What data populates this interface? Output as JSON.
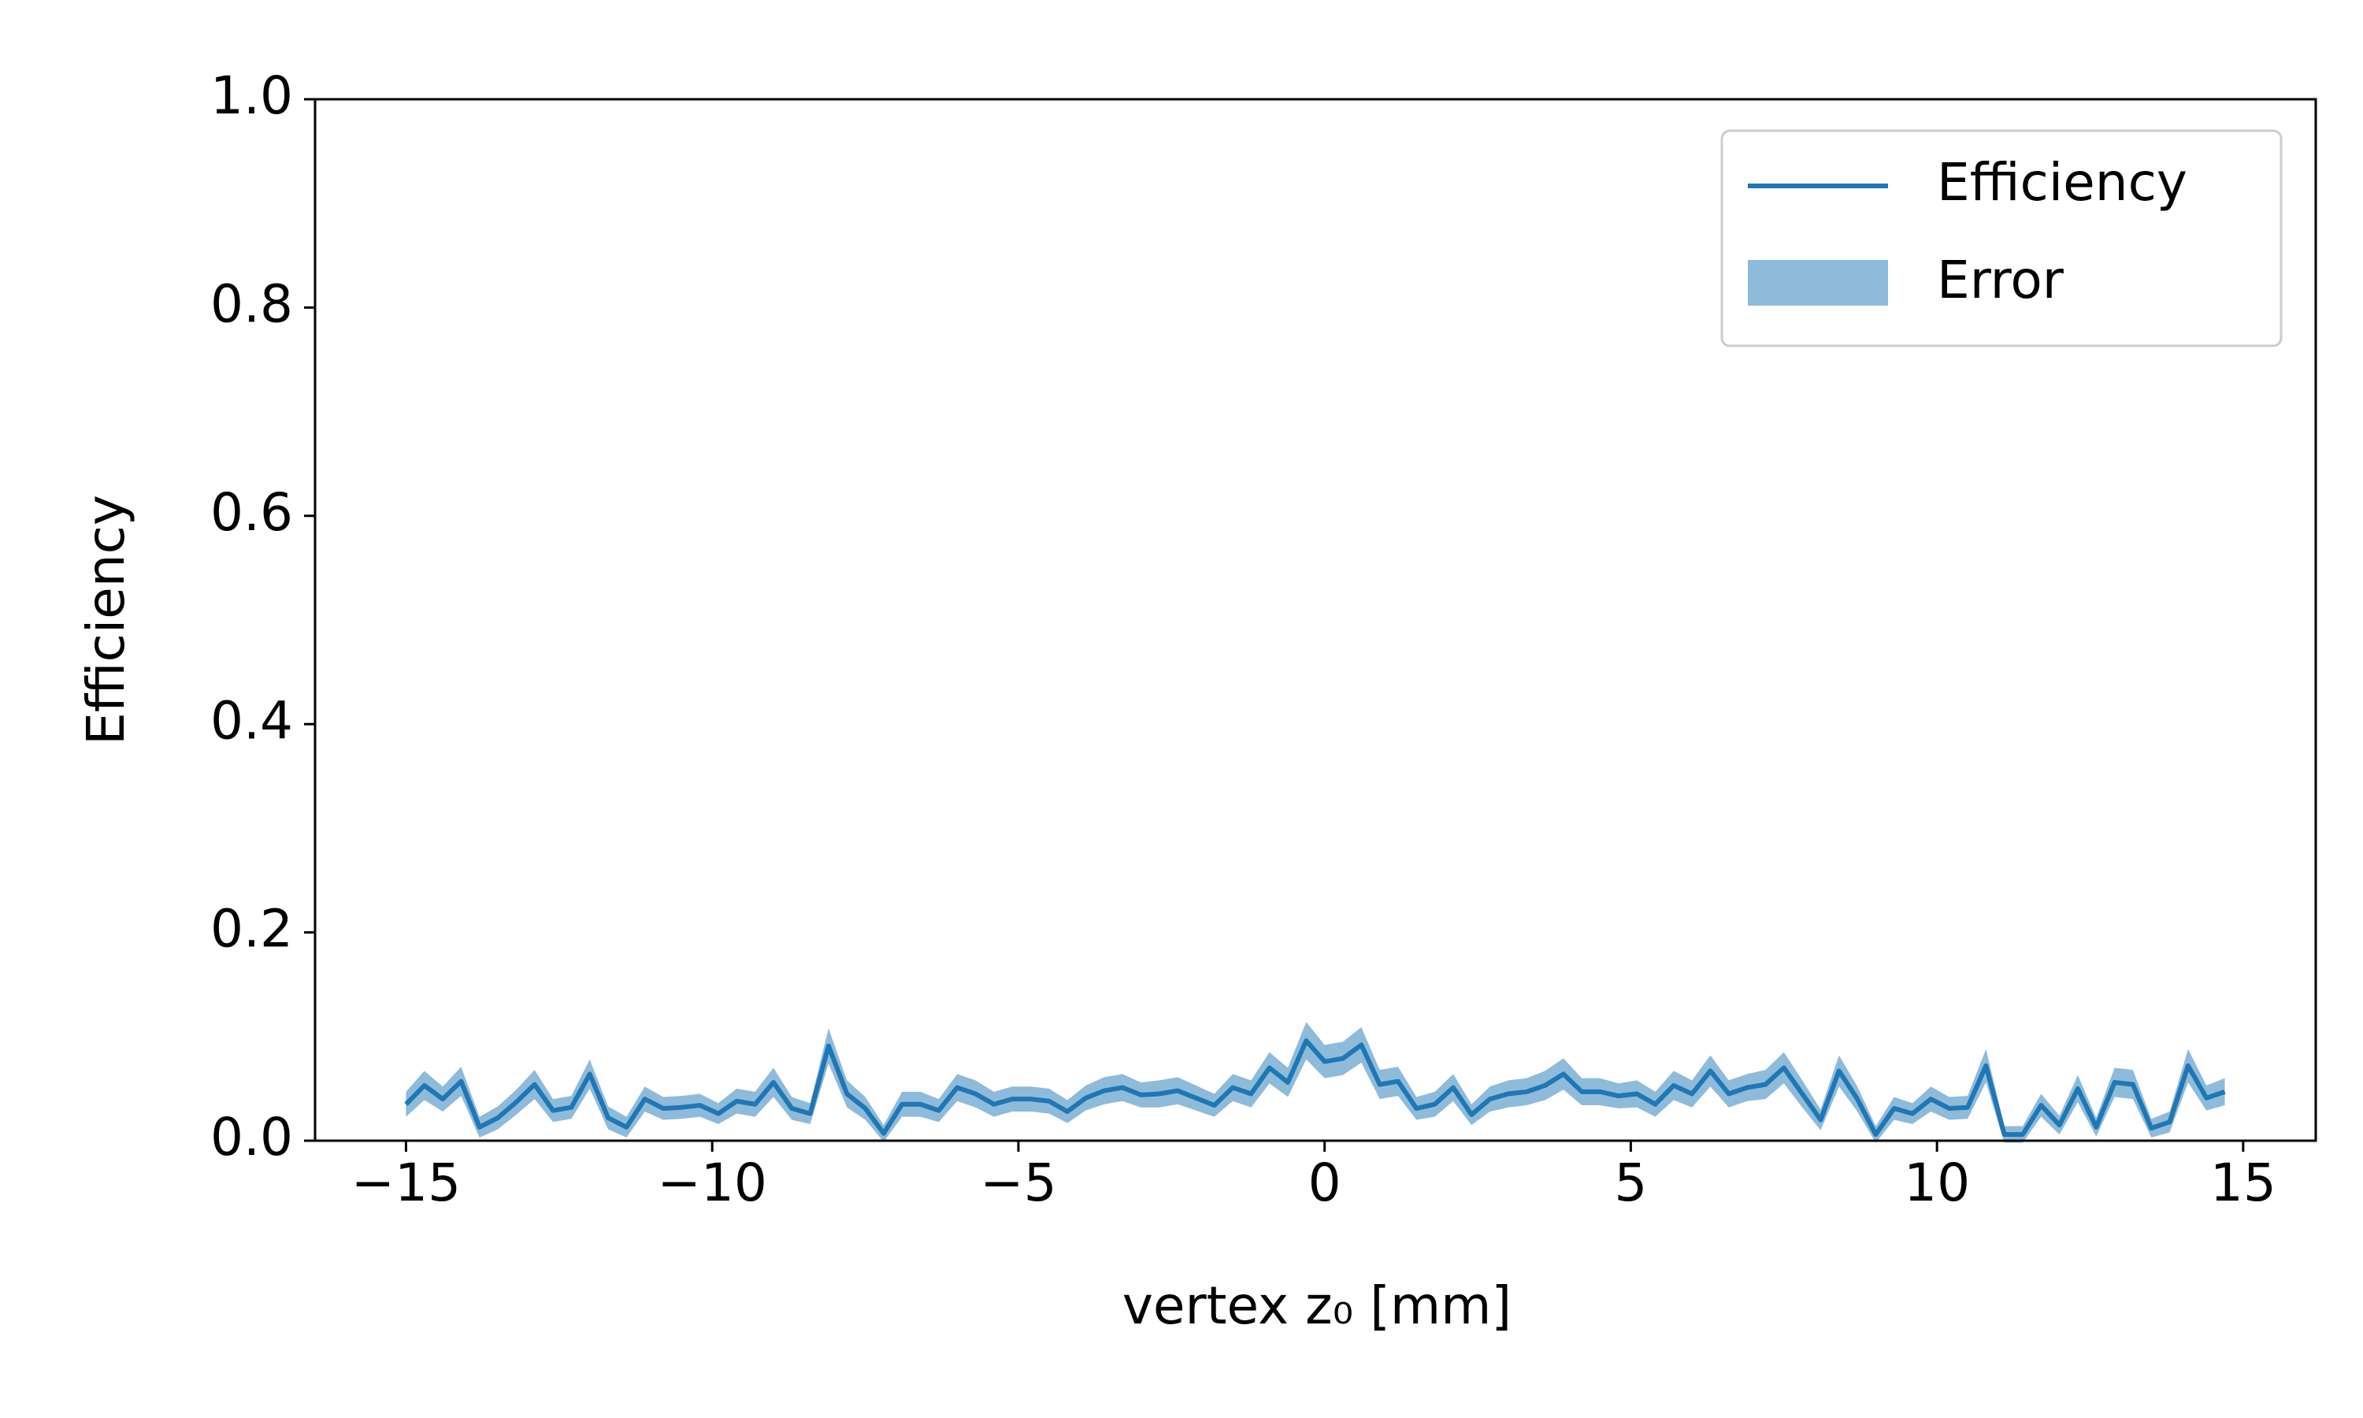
{
  "chart_data": {
    "type": "line",
    "xlabel": "vertex z₀ [mm]",
    "ylabel": "Efficiency",
    "x": [
      -15,
      -14.7,
      -14.4,
      -14.1,
      -13.8,
      -13.5,
      -13.2,
      -12.9,
      -12.6,
      -12.3,
      -12,
      -11.7,
      -11.4,
      -11.1,
      -10.8,
      -10.5,
      -10.2,
      -9.9,
      -9.6,
      -9.3,
      -9,
      -8.7,
      -8.4,
      -8.1,
      -7.8,
      -7.5,
      -7.2,
      -6.9,
      -6.6,
      -6.3,
      -6,
      -5.7,
      -5.4,
      -5.1,
      -4.8,
      -4.5,
      -4.2,
      -3.9,
      -3.6,
      -3.3,
      -3,
      -2.7,
      -2.4,
      -2.1,
      -1.8,
      -1.5,
      -1.2,
      -0.9,
      -0.6,
      -0.3,
      0,
      0.3,
      0.6,
      0.9,
      1.2,
      1.5,
      1.8,
      2.1,
      2.4,
      2.7,
      3,
      3.3,
      3.6,
      3.9,
      4.2,
      4.5,
      4.8,
      5.1,
      5.4,
      5.7,
      6,
      6.3,
      6.6,
      6.9,
      7.2,
      7.5,
      7.8,
      8.1,
      8.4,
      8.7,
      9,
      9.3,
      9.6,
      9.9,
      10.2,
      10.5,
      10.8,
      11.1,
      11.4,
      11.7,
      12,
      12.3,
      12.6,
      12.9,
      13.2,
      13.5,
      13.8,
      14.1,
      14.4,
      14.7
    ],
    "series": [
      {
        "name": "Efficiency",
        "color": "#1f77b4",
        "values": [
          0.035,
          0.053,
          0.04,
          0.057,
          0.013,
          0.022,
          0.037,
          0.054,
          0.029,
          0.032,
          0.064,
          0.022,
          0.013,
          0.04,
          0.031,
          0.032,
          0.034,
          0.026,
          0.038,
          0.035,
          0.056,
          0.031,
          0.026,
          0.091,
          0.045,
          0.031,
          0.007,
          0.035,
          0.035,
          0.029,
          0.051,
          0.045,
          0.035,
          0.04,
          0.04,
          0.038,
          0.028,
          0.041,
          0.048,
          0.051,
          0.044,
          0.045,
          0.048,
          0.041,
          0.034,
          0.051,
          0.045,
          0.07,
          0.056,
          0.096,
          0.076,
          0.079,
          0.092,
          0.054,
          0.057,
          0.031,
          0.035,
          0.051,
          0.025,
          0.04,
          0.045,
          0.047,
          0.053,
          0.064,
          0.047,
          0.047,
          0.043,
          0.045,
          0.035,
          0.053,
          0.045,
          0.067,
          0.045,
          0.051,
          0.054,
          0.07,
          0.045,
          0.02,
          0.067,
          0.04,
          0.006,
          0.031,
          0.026,
          0.04,
          0.031,
          0.032,
          0.072,
          0.006,
          0.006,
          0.034,
          0.015,
          0.05,
          0.013,
          0.056,
          0.054,
          0.012,
          0.018,
          0.072,
          0.041,
          0.047
        ]
      },
      {
        "name": "Error",
        "color": "#8fbbda",
        "values": [
          0.012,
          0.014,
          0.012,
          0.014,
          0.01,
          0.011,
          0.012,
          0.014,
          0.011,
          0.011,
          0.014,
          0.011,
          0.01,
          0.012,
          0.011,
          0.011,
          0.011,
          0.01,
          0.012,
          0.012,
          0.014,
          0.011,
          0.01,
          0.017,
          0.013,
          0.011,
          0.008,
          0.012,
          0.012,
          0.011,
          0.013,
          0.013,
          0.012,
          0.012,
          0.012,
          0.012,
          0.011,
          0.012,
          0.013,
          0.013,
          0.012,
          0.013,
          0.013,
          0.012,
          0.011,
          0.013,
          0.013,
          0.015,
          0.014,
          0.018,
          0.016,
          0.016,
          0.017,
          0.014,
          0.014,
          0.011,
          0.012,
          0.013,
          0.01,
          0.012,
          0.013,
          0.013,
          0.014,
          0.015,
          0.013,
          0.013,
          0.012,
          0.013,
          0.012,
          0.014,
          0.013,
          0.015,
          0.013,
          0.013,
          0.014,
          0.015,
          0.013,
          0.01,
          0.015,
          0.012,
          0.008,
          0.011,
          0.01,
          0.012,
          0.011,
          0.011,
          0.016,
          0.008,
          0.008,
          0.011,
          0.009,
          0.013,
          0.009,
          0.014,
          0.014,
          0.009,
          0.01,
          0.016,
          0.012,
          0.013
        ]
      }
    ],
    "xlim": [
      -16.485,
      16.185
    ],
    "ylim": [
      0,
      1
    ],
    "xticks": [
      {
        "value": -15,
        "label": "−15"
      },
      {
        "value": -10,
        "label": "−10"
      },
      {
        "value": -5,
        "label": "−5"
      },
      0,
      5,
      10,
      15
    ],
    "yticks": [
      {
        "value": 0,
        "label": "0.0"
      },
      {
        "value": 0.2,
        "label": "0.2"
      },
      {
        "value": 0.4,
        "label": "0.4"
      },
      {
        "value": 0.6,
        "label": "0.6"
      },
      {
        "value": 0.8,
        "label": "0.8"
      },
      {
        "value": 1,
        "label": "1.0"
      }
    ],
    "legend": "upper right"
  }
}
